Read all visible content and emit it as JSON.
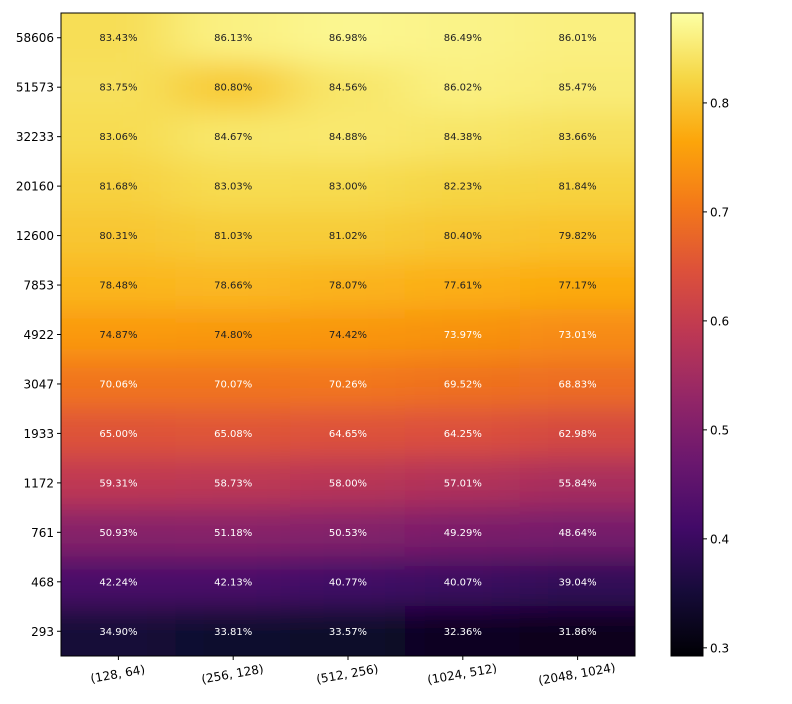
{
  "chart_data": {
    "type": "heatmap",
    "colormap": "inferno",
    "categories": [
      "(128, 64)",
      "(256, 128)",
      "(512, 256)",
      "(1024, 512)",
      "(2048, 1024)"
    ],
    "rows": [
      "58606",
      "51573",
      "32233",
      "20160",
      "12600",
      "7853",
      "4922",
      "3047",
      "1933",
      "1172",
      "761",
      "468",
      "293"
    ],
    "values": [
      [
        0.8343,
        0.8613,
        0.8698,
        0.8649,
        0.8601
      ],
      [
        0.8375,
        0.808,
        0.8456,
        0.8602,
        0.8547
      ],
      [
        0.8306,
        0.8467,
        0.8488,
        0.8438,
        0.8366
      ],
      [
        0.8168,
        0.8303,
        0.83,
        0.8223,
        0.8184
      ],
      [
        0.8031,
        0.8103,
        0.8102,
        0.804,
        0.7982
      ],
      [
        0.7848,
        0.7866,
        0.7807,
        0.7761,
        0.7717
      ],
      [
        0.7487,
        0.748,
        0.7442,
        0.7397,
        0.7301
      ],
      [
        0.7006,
        0.7007,
        0.7026,
        0.6952,
        0.6883
      ],
      [
        0.65,
        0.6508,
        0.6465,
        0.6425,
        0.6298
      ],
      [
        0.5931,
        0.5873,
        0.58,
        0.5701,
        0.5584
      ],
      [
        0.5093,
        0.5118,
        0.5053,
        0.4929,
        0.4864
      ],
      [
        0.4224,
        0.4213,
        0.4077,
        0.4007,
        0.3904
      ],
      [
        0.349,
        0.3381,
        0.3357,
        0.3236,
        0.3186
      ]
    ],
    "cell_labels": [
      [
        "83.43%",
        "86.13%",
        "86.98%",
        "86.49%",
        "86.01%"
      ],
      [
        "83.75%",
        "80.80%",
        "84.56%",
        "86.02%",
        "85.47%"
      ],
      [
        "83.06%",
        "84.67%",
        "84.88%",
        "84.38%",
        "83.66%"
      ],
      [
        "81.68%",
        "83.03%",
        "83.00%",
        "82.23%",
        "81.84%"
      ],
      [
        "80.31%",
        "81.03%",
        "81.02%",
        "80.40%",
        "79.82%"
      ],
      [
        "78.48%",
        "78.66%",
        "78.07%",
        "77.61%",
        "77.17%"
      ],
      [
        "74.87%",
        "74.80%",
        "74.42%",
        "73.97%",
        "73.01%"
      ],
      [
        "70.06%",
        "70.07%",
        "70.26%",
        "69.52%",
        "68.83%"
      ],
      [
        "65.00%",
        "65.08%",
        "64.65%",
        "64.25%",
        "62.98%"
      ],
      [
        "59.31%",
        "58.73%",
        "58.00%",
        "57.01%",
        "55.84%"
      ],
      [
        "50.93%",
        "51.18%",
        "50.53%",
        "49.29%",
        "48.64%"
      ],
      [
        "42.24%",
        "42.13%",
        "40.77%",
        "40.07%",
        "39.04%"
      ],
      [
        "34.90%",
        "33.81%",
        "33.57%",
        "32.36%",
        "31.86%"
      ]
    ],
    "colorbar": {
      "range": [
        0.2925,
        0.8825
      ],
      "ticks": [
        0.3,
        0.4,
        0.5,
        0.6,
        0.7,
        0.8
      ],
      "tick_labels": [
        "0.3",
        "0.4",
        "0.5",
        "0.6",
        "0.7",
        "0.8"
      ]
    },
    "text_color_threshold": 0.74,
    "title": "",
    "xlabel": "",
    "ylabel": "",
    "interpolation": "smooth"
  }
}
